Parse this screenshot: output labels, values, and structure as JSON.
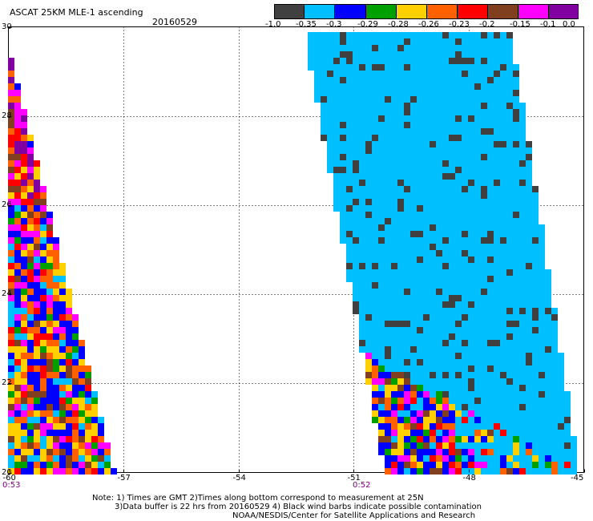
{
  "header": {
    "title": "ASCAT 25KM MLE-1 ascending",
    "date": "20160529"
  },
  "colorbar": {
    "colors": [
      "#404040",
      "#00bfff",
      "#0000ff",
      "#00a000",
      "#ffd000",
      "#ff6000",
      "#ff0000",
      "#804020",
      "#ff00ff",
      "#8000a0"
    ],
    "labels": [
      "-1.0",
      "-0.35",
      "-0.3",
      "-0.29",
      "-0.28",
      "-0.26",
      "-0.23",
      "-0.2",
      "-0.15",
      "-0.1",
      "0.0"
    ]
  },
  "axes": {
    "lat_labels": [
      "30",
      "28",
      "26",
      "24",
      "22",
      "20"
    ],
    "lon_labels": [
      "-60",
      "-57",
      "-54",
      "-51",
      "-48",
      "-45"
    ],
    "lat_range": [
      20,
      30
    ],
    "lon_range": [
      -60,
      -45
    ]
  },
  "swath_times": {
    "left": "0:53",
    "right": "0:52"
  },
  "notes": {
    "line1": "Note: 1) Times are GMT 2)Times along bottom correspond to measurement at 25N",
    "line2": "3)Data buffer is 22 hrs from 20160529 4) Black wind barbs indicate possible contamination",
    "line3": "NOAA/NESDIS/Center for Satellite Applications and Research"
  }
}
